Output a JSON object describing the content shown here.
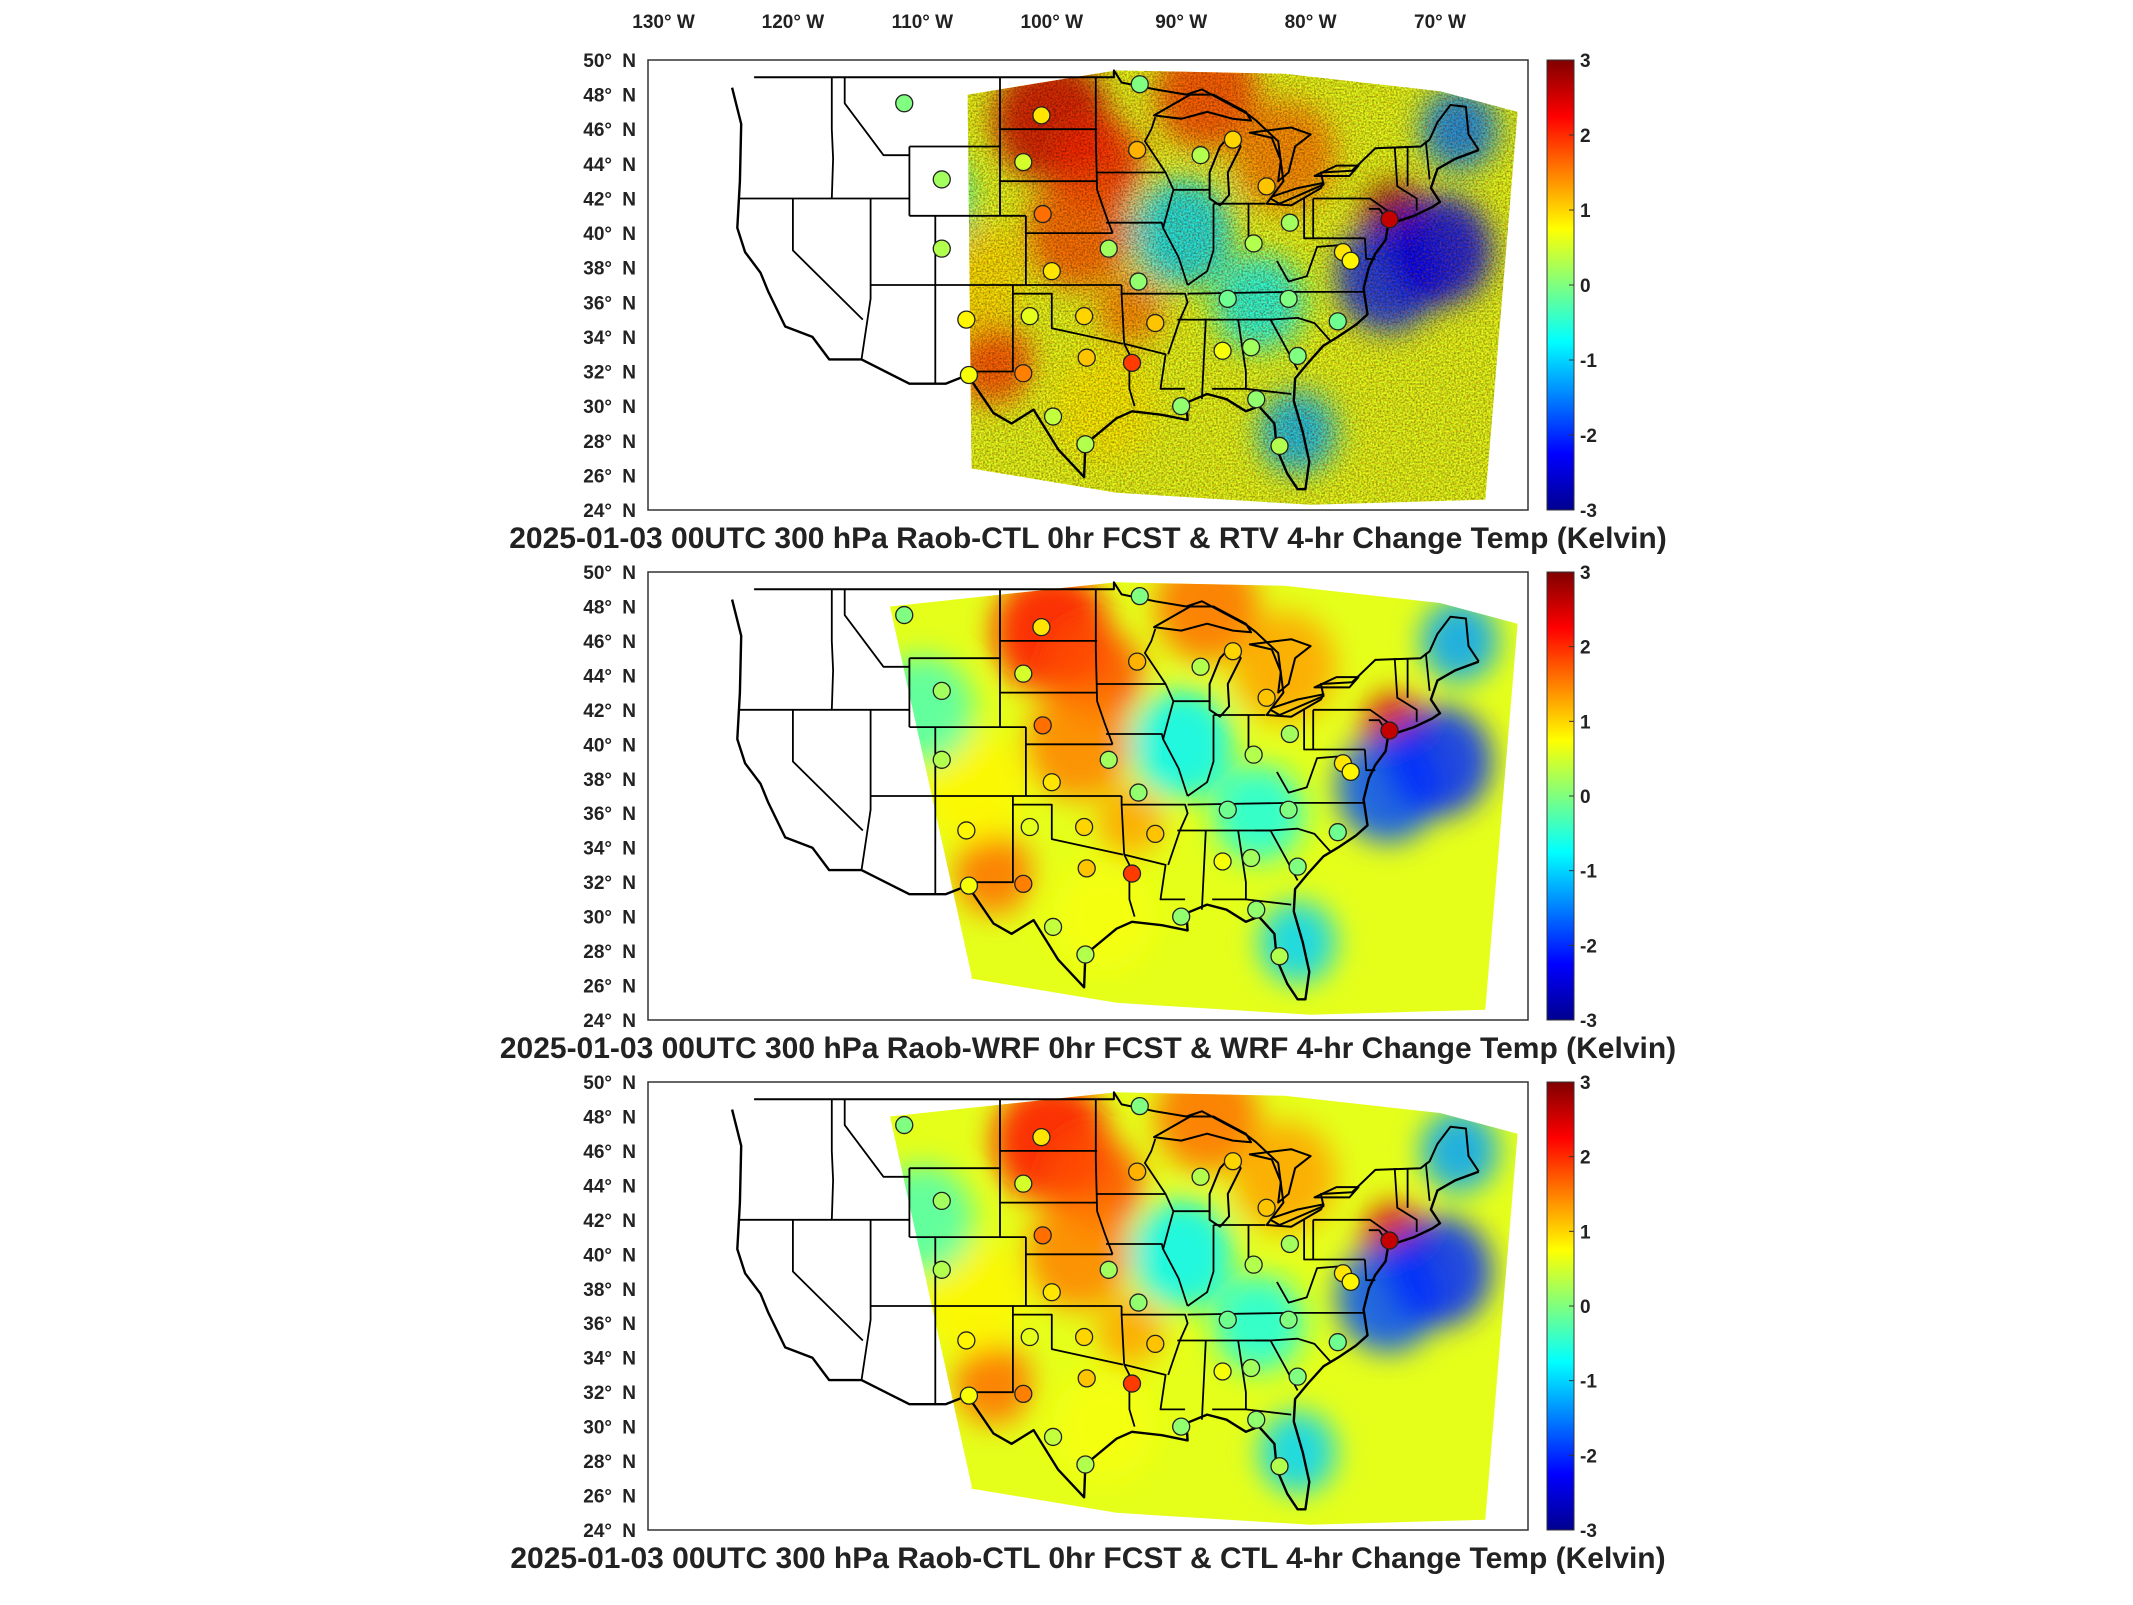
{
  "figure": {
    "top_lon_labels": [
      {
        "deg": "130",
        "hemi": "W"
      },
      {
        "deg": "120",
        "hemi": "W"
      },
      {
        "deg": "110",
        "hemi": "W"
      },
      {
        "deg": "100",
        "hemi": "W"
      },
      {
        "deg": "90",
        "hemi": "W"
      },
      {
        "deg": "80",
        "hemi": "W"
      },
      {
        "deg": "70",
        "hemi": "W"
      }
    ],
    "lat_labels": [
      {
        "deg": "50",
        "hemi": "N"
      },
      {
        "deg": "48",
        "hemi": "N"
      },
      {
        "deg": "46",
        "hemi": "N"
      },
      {
        "deg": "44",
        "hemi": "N"
      },
      {
        "deg": "42",
        "hemi": "N"
      },
      {
        "deg": "40",
        "hemi": "N"
      },
      {
        "deg": "38",
        "hemi": "N"
      },
      {
        "deg": "36",
        "hemi": "N"
      },
      {
        "deg": "34",
        "hemi": "N"
      },
      {
        "deg": "32",
        "hemi": "N"
      },
      {
        "deg": "30",
        "hemi": "N"
      },
      {
        "deg": "28",
        "hemi": "N"
      },
      {
        "deg": "26",
        "hemi": "N"
      },
      {
        "deg": "24",
        "hemi": "N"
      }
    ],
    "degree_symbol": "°",
    "colorbar": {
      "ticks": [
        "3",
        "2",
        "1",
        "0",
        "-1",
        "-2",
        "-3"
      ],
      "range": [
        -3,
        3
      ],
      "colormap": "jet"
    }
  },
  "panels": [
    {
      "title": "2025-01-03 00UTC 300 hPa Raob-CTL 0hr FCST & RTV 4-hr Change Temp (Kelvin)",
      "field_style": "noisy",
      "domain_west_lon": -106.5
    },
    {
      "title": "2025-01-03 00UTC 300 hPa Raob-WRF 0hr FCST & WRF 4-hr Change Temp (Kelvin)",
      "field_style": "smooth",
      "domain_west_lon": -112.5
    },
    {
      "title": "2025-01-03 00UTC 300 hPa Raob-CTL 0hr FCST & CTL 4-hr Change Temp (Kelvin)",
      "field_style": "smooth",
      "domain_west_lon": -112.5
    }
  ],
  "chart_data": {
    "type": "heatmap",
    "units": "Kelvin",
    "color_range": [
      -3,
      3
    ],
    "raob_stations": [
      {
        "lon": -111.4,
        "lat": 47.5,
        "value": 0.0
      },
      {
        "lon": -108.5,
        "lat": 43.1,
        "value": 0.2
      },
      {
        "lon": -108.5,
        "lat": 39.1,
        "value": 0.3
      },
      {
        "lon": -106.6,
        "lat": 35.0,
        "value": 0.8
      },
      {
        "lon": -106.4,
        "lat": 31.8,
        "value": 0.7
      },
      {
        "lon": -102.2,
        "lat": 44.1,
        "value": 0.5
      },
      {
        "lon": -100.8,
        "lat": 46.8,
        "value": 0.9
      },
      {
        "lon": -101.7,
        "lat": 35.2,
        "value": 0.6
      },
      {
        "lon": -100.7,
        "lat": 41.1,
        "value": 1.6
      },
      {
        "lon": -100.0,
        "lat": 37.8,
        "value": 0.9
      },
      {
        "lon": -102.2,
        "lat": 31.9,
        "value": 1.5
      },
      {
        "lon": -97.5,
        "lat": 35.2,
        "value": 1.0
      },
      {
        "lon": -97.3,
        "lat": 32.8,
        "value": 1.1
      },
      {
        "lon": -97.4,
        "lat": 27.8,
        "value": 0.3
      },
      {
        "lon": -95.6,
        "lat": 39.1,
        "value": 0.2
      },
      {
        "lon": -99.9,
        "lat": 29.4,
        "value": 0.4
      },
      {
        "lon": -93.4,
        "lat": 44.8,
        "value": 1.2
      },
      {
        "lon": -93.2,
        "lat": 48.6,
        "value": 0.0
      },
      {
        "lon": -93.3,
        "lat": 37.2,
        "value": 0.1
      },
      {
        "lon": -92.0,
        "lat": 34.8,
        "value": 1.1
      },
      {
        "lon": -93.8,
        "lat": 32.5,
        "value": 1.9
      },
      {
        "lon": -90.0,
        "lat": 30.0,
        "value": 0.1
      },
      {
        "lon": -88.5,
        "lat": 44.5,
        "value": 0.3
      },
      {
        "lon": -86.4,
        "lat": 36.2,
        "value": -0.1
      },
      {
        "lon": -86.8,
        "lat": 33.2,
        "value": 0.7
      },
      {
        "lon": -84.6,
        "lat": 33.4,
        "value": 0.2
      },
      {
        "lon": -84.2,
        "lat": 30.4,
        "value": 0.1
      },
      {
        "lon": -86.0,
        "lat": 45.4,
        "value": 1.0
      },
      {
        "lon": -83.4,
        "lat": 42.7,
        "value": 1.1
      },
      {
        "lon": -84.4,
        "lat": 39.4,
        "value": 0.3
      },
      {
        "lon": -81.6,
        "lat": 40.6,
        "value": 0.2
      },
      {
        "lon": -81.0,
        "lat": 32.9,
        "value": 0.0
      },
      {
        "lon": -81.7,
        "lat": 36.2,
        "value": 0.0
      },
      {
        "lon": -82.4,
        "lat": 27.7,
        "value": 0.3
      },
      {
        "lon": -77.5,
        "lat": 38.9,
        "value": 0.9
      },
      {
        "lon": -76.9,
        "lat": 38.4,
        "value": 0.8
      },
      {
        "lon": -77.9,
        "lat": 34.9,
        "value": -0.1
      },
      {
        "lon": -73.9,
        "lat": 40.8,
        "value": 2.6
      }
    ]
  }
}
